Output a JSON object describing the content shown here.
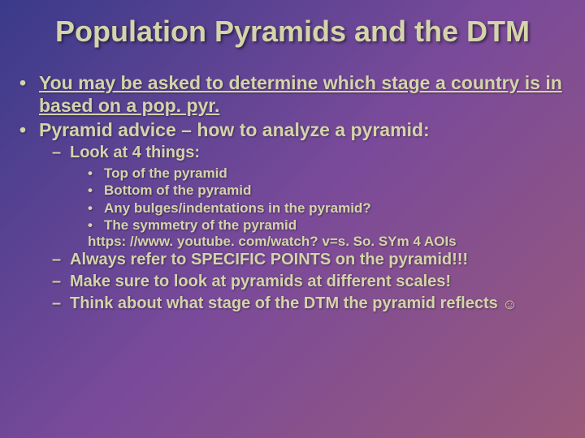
{
  "colors": {
    "background_gradient_start": "#3a3a8a",
    "background_gradient_mid": "#7a4a9a",
    "background_gradient_end": "#9a5a7a",
    "text_color": "#d4d4aa",
    "shadow_color": "rgba(0,0,0,0.5)"
  },
  "typography": {
    "title_fontsize": 36,
    "l1_fontsize": 23,
    "l2_fontsize": 20,
    "l3_fontsize": 17,
    "font_family": "Arial",
    "font_weight": "bold"
  },
  "title": "Population Pyramids and the DTM",
  "bullets": {
    "l1_a": "You may be asked to determine which stage a country is in based on a pop. pyr.",
    "l1_b": "Pyramid advice – how to analyze a pyramid:",
    "l2_a": "Look at 4 things:",
    "l3_a": "Top of the pyramid",
    "l3_b": "Bottom of the pyramid",
    "l3_c": "Any bulges/indentations in the pyramid?",
    "l3_d": "The symmetry of the pyramid",
    "url": "https: //www. youtube. com/watch? v=s. So. SYm 4 AOIs",
    "l2_b": "Always refer to SPECIFIC POINTS on the pyramid!!!",
    "l2_c": "Make sure to look at pyramids at different scales!",
    "l2_d": "Think about what stage of the DTM the pyramid reflects",
    "smiley": "☺"
  },
  "markers": {
    "l1": "•",
    "l2": "–",
    "l3": "•"
  }
}
